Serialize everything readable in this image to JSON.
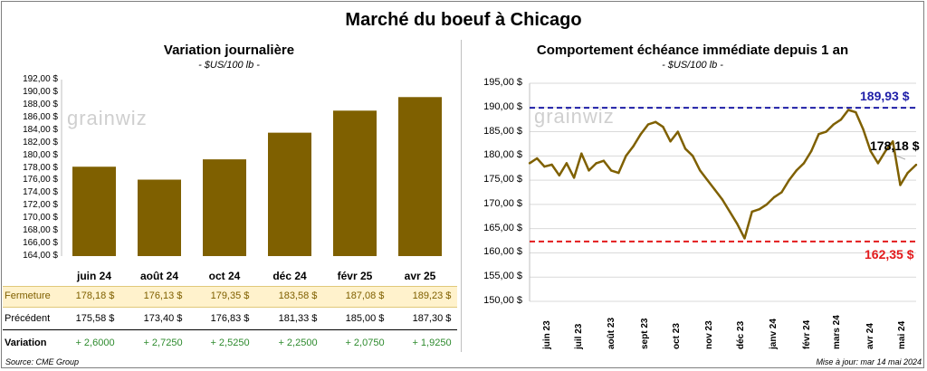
{
  "title": "Marché du boeuf à Chicago",
  "colors": {
    "bar": "#7f6000",
    "line": "#7f6000",
    "high": "#1f1fa8",
    "low": "#e31a1c",
    "green": "#2e8b2e",
    "highlight_row": "#fff2cc"
  },
  "left_panel": {
    "title": "Variation journalière",
    "subtitle": "- $US/100 lb -",
    "watermark": "grainwiz"
  },
  "right_panel": {
    "title": "Comportement échéance immédiate depuis 1 an",
    "subtitle": "- $US/100 lb -",
    "watermark": "grainwiz",
    "high_label": "189,93 $",
    "low_label": "162,35 $",
    "last_label": "178,18 $"
  },
  "table": {
    "rows": [
      {
        "label": "Fermeture",
        "values": [
          "178,18  $",
          "176,13  $",
          "179,35  $",
          "183,58  $",
          "187,08  $",
          "189,23  $"
        ]
      },
      {
        "label": "Précédent",
        "values": [
          "175,58  $",
          "173,40  $",
          "176,83  $",
          "181,33  $",
          "185,00  $",
          "187,30  $"
        ]
      },
      {
        "label": "Variation",
        "values": [
          "+ 2,6000",
          "+ 2,7250",
          "+ 2,5250",
          "+ 2,2500",
          "+ 2,0750",
          "+ 1,9250"
        ]
      }
    ]
  },
  "footer": {
    "source": "Source: CME Group",
    "updated": "Mise à jour: mar 14 mai 2024"
  },
  "chart_data": [
    {
      "type": "bar",
      "title": "Variation journalière",
      "subtitle": "- $US/100 lb -",
      "categories": [
        "juin 24",
        "août 24",
        "oct 24",
        "déc 24",
        "févr 25",
        "avr 25"
      ],
      "values": [
        178.18,
        176.13,
        179.35,
        183.58,
        187.08,
        189.23
      ],
      "ylim": [
        164,
        192
      ],
      "yticks": [
        "164,00 $",
        "166,00 $",
        "168,00 $",
        "170,00 $",
        "172,00 $",
        "174,00 $",
        "176,00 $",
        "178,00 $",
        "180,00 $",
        "182,00 $",
        "184,00 $",
        "186,00 $",
        "188,00 $",
        "190,00 $",
        "192,00 $"
      ],
      "grid": false,
      "legend": "none"
    },
    {
      "type": "line",
      "title": "Comportement échéance immédiate depuis 1 an",
      "subtitle": "- $US/100 lb -",
      "ylim": [
        150,
        195
      ],
      "yticks": [
        "150,00 $",
        "155,00 $",
        "160,00 $",
        "165,00 $",
        "170,00 $",
        "175,00 $",
        "180,00 $",
        "185,00 $",
        "190,00 $",
        "195,00 $"
      ],
      "xticks": [
        "juin 23",
        "juil 23",
        "août 23",
        "sept 23",
        "oct 23",
        "nov 23",
        "déc 23",
        "janv 24",
        "févr 24",
        "mars 24",
        "avr 24",
        "mai 24"
      ],
      "x": [
        "2023-05-15",
        "2023-05-22",
        "2023-05-29",
        "2023-06-05",
        "2023-06-12",
        "2023-06-19",
        "2023-06-26",
        "2023-07-03",
        "2023-07-10",
        "2023-07-17",
        "2023-07-24",
        "2023-07-31",
        "2023-08-07",
        "2023-08-14",
        "2023-08-21",
        "2023-08-28",
        "2023-09-04",
        "2023-09-11",
        "2023-09-18",
        "2023-09-25",
        "2023-10-02",
        "2023-10-09",
        "2023-10-16",
        "2023-10-23",
        "2023-10-30",
        "2023-11-06",
        "2023-11-13",
        "2023-11-20",
        "2023-11-27",
        "2023-12-04",
        "2023-12-11",
        "2023-12-18",
        "2023-12-25",
        "2024-01-01",
        "2024-01-08",
        "2024-01-15",
        "2024-01-22",
        "2024-01-29",
        "2024-02-05",
        "2024-02-12",
        "2024-02-19",
        "2024-02-26",
        "2024-03-04",
        "2024-03-11",
        "2024-03-18",
        "2024-03-25",
        "2024-04-01",
        "2024-04-08",
        "2024-04-15",
        "2024-04-22",
        "2024-04-29",
        "2024-05-06",
        "2024-05-14"
      ],
      "series": [
        {
          "values": [
            178.5,
            179.5,
            177.8,
            178.2,
            176.0,
            178.5,
            175.5,
            180.5,
            177.0,
            178.5,
            179.0,
            177.0,
            176.5,
            180.0,
            182.0,
            184.5,
            186.5,
            187.0,
            186.0,
            183.0,
            185.0,
            181.5,
            180.0,
            177.0,
            175.0,
            173.0,
            171.0,
            168.5,
            166.0,
            163.0,
            168.5,
            169.0,
            170.0,
            171.5,
            172.5,
            175.0,
            177.0,
            178.5,
            181.0,
            184.5,
            185.0,
            186.5,
            187.5,
            189.5,
            189.0,
            185.5,
            181.0,
            178.5,
            181.0,
            183.0,
            174.0,
            176.5,
            178.18
          ]
        }
      ],
      "reference_lines": [
        {
          "label": "189,93 $",
          "value": 189.93
        },
        {
          "label": "162,35 $",
          "value": 162.35
        }
      ],
      "grid": true,
      "legend": "none"
    }
  ]
}
